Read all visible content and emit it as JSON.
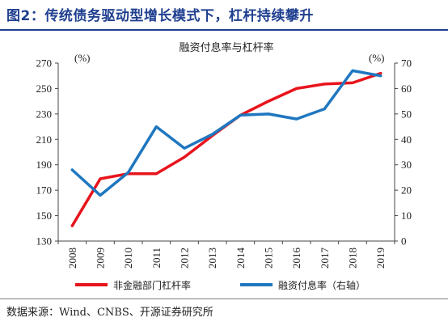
{
  "figure_title": "图2：传统债务驱动型增长模式下，杠杆持续攀升",
  "source": "数据来源：Wind、CNBS、开源证券研究所",
  "chart_data": {
    "type": "line",
    "title": "融资付息率与杠杆率",
    "categories": [
      "2008",
      "2009",
      "2010",
      "2011",
      "2012",
      "2013",
      "2014",
      "2015",
      "2016",
      "2017",
      "2018",
      "2019"
    ],
    "left_axis": {
      "unit_label": "(%)",
      "ylim": [
        130,
        270
      ],
      "ticks": [
        130,
        150,
        170,
        190,
        210,
        230,
        250,
        270
      ]
    },
    "right_axis": {
      "unit_label": "(%)",
      "ylim": [
        0,
        70
      ],
      "ticks": [
        0,
        10,
        20,
        30,
        40,
        50,
        60,
        70
      ]
    },
    "series": [
      {
        "name": "非金融部门杠杆率",
        "axis": "left",
        "color": "#e8141c",
        "values": [
          142,
          179,
          183,
          183,
          196,
          213,
          229,
          240,
          250,
          253.5,
          254.5,
          262
        ]
      },
      {
        "name": "融资付息率（右轴）",
        "axis": "right",
        "color": "#1f77c0",
        "values": [
          28,
          18,
          27,
          45,
          36.5,
          42,
          49.5,
          50,
          48,
          52,
          67,
          65
        ]
      }
    ],
    "grid": false,
    "legend_position": "bottom"
  }
}
